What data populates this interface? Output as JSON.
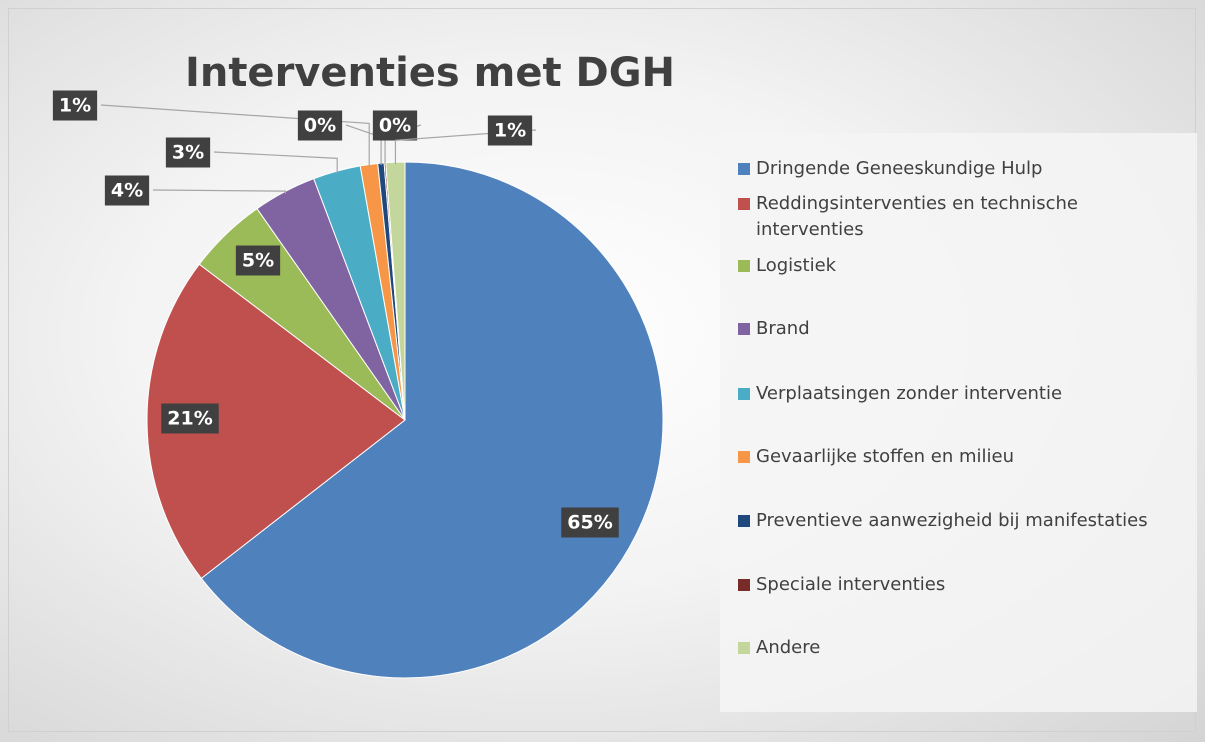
{
  "chart_data": {
    "type": "pie",
    "title": "Interventies met DGH",
    "categories": [
      "Dringende Geneeskundige Hulp",
      "Reddingsinterventies en technische interventies",
      "Logistiek",
      "Brand",
      "Verplaatsingen zonder interventie",
      "Gevaarlijke stoffen en milieu",
      "Preventieve aanwezigheid bij manifestaties",
      "Speciale interventies",
      "Andere"
    ],
    "values": [
      65,
      21,
      5,
      4,
      3,
      1.1,
      0.4,
      0.1,
      1.2
    ],
    "value_labels": [
      "65%",
      "21%",
      "5%",
      "4%",
      "3%",
      "1%",
      "0%",
      "0%",
      "1%"
    ],
    "colors": [
      "#4f81bd",
      "#c0504d",
      "#9bbb59",
      "#8064a2",
      "#4bacc6",
      "#f79646",
      "#1f497d",
      "#772c2a",
      "#c3d69b"
    ],
    "legend": "right"
  }
}
